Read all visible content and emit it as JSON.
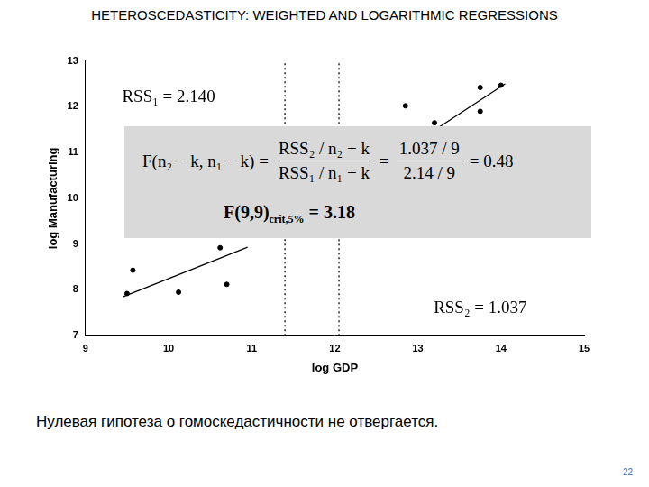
{
  "header": {
    "title": "HETEROSCEDASTICITY: WEIGHTED AND LOGARITHMIC REGRESSIONS"
  },
  "chart_data": {
    "type": "scatter",
    "x_label": "log GDP",
    "y_label": "log Manufacturing",
    "xlim": [
      9,
      15
    ],
    "xticks": [
      9,
      10,
      11,
      12,
      13,
      14,
      15
    ],
    "ylim": [
      7,
      13
    ],
    "yticks": [
      7,
      8,
      9,
      10,
      11,
      12,
      13
    ],
    "grid": false,
    "series": [
      {
        "type": "scatter",
        "color": "#000000",
        "marker": "circle",
        "x": [
          9.5,
          9.57,
          10.12,
          10.62,
          10.7,
          12.85,
          13.2,
          13.75,
          13.75,
          14.0
        ],
        "values": [
          7.92,
          8.43,
          7.95,
          8.92,
          8.12,
          12.02,
          11.65,
          12.42,
          11.9,
          12.47
        ]
      },
      {
        "type": "line",
        "color": "#000000",
        "line_style": "solid",
        "x": [
          9.45,
          10.95
        ],
        "values": [
          7.85,
          8.93
        ]
      },
      {
        "type": "line",
        "color": "#000000",
        "line_style": "solid",
        "x": [
          13.25,
          14.05
        ],
        "values": [
          11.55,
          12.5
        ]
      },
      {
        "type": "line",
        "color": "#000000",
        "line_style": "dotted",
        "x": [
          11.4,
          11.4
        ],
        "values": [
          7,
          13
        ]
      },
      {
        "type": "line",
        "color": "#000000",
        "line_style": "dotted",
        "x": [
          12.05,
          12.05
        ],
        "values": [
          7,
          13
        ]
      }
    ],
    "annotations": [
      {
        "text": "RSS₁ = 2.140",
        "x": 9.44,
        "y": 12.2
      },
      {
        "text": "RSS₂ = 1.037",
        "x": 13.19,
        "y": 7.6
      }
    ]
  },
  "formula_box": {
    "lhs": "F(n₂ − k, n₁ − k) =",
    "fraction1": {
      "numerator": "RSS₂ / n₂ − k",
      "denominator": "RSS₁ / n₁ − k"
    },
    "separator": "=",
    "fraction2": {
      "numerator": "1.037 / 9",
      "denominator": "2.14 / 9"
    },
    "result": "= 0.48",
    "critical": {
      "text": "F(9,9)",
      "subscript": "crit,5%",
      "value": "= 3.18"
    }
  },
  "footer": {
    "conclusion": "Нулевая гипотеза о гомоскедастичности не отвергается.",
    "page": "22"
  }
}
